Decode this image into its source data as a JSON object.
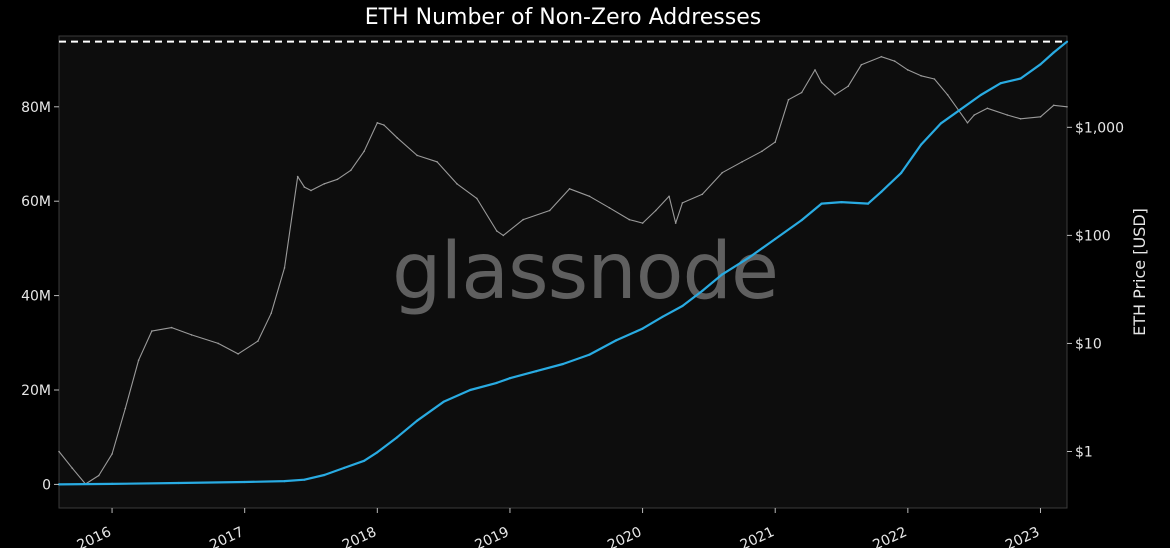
{
  "chart_data": {
    "type": "line",
    "title": "ETH Number of Non-Zero Addresses",
    "watermark": "glassnode",
    "xlabel": "",
    "ylabel_left": "",
    "ylabel_right": "ETH Price [USD]",
    "x_ticks": [
      "2016",
      "2017",
      "2018",
      "2019",
      "2020",
      "2021",
      "2022",
      "2023"
    ],
    "y_left_ticks": [
      {
        "value": 0,
        "label": "0"
      },
      {
        "value": 20,
        "label": "20M"
      },
      {
        "value": 40,
        "label": "40M"
      },
      {
        "value": 60,
        "label": "60M"
      },
      {
        "value": 80,
        "label": "80M"
      }
    ],
    "y_right_ticks": [
      {
        "value": 1,
        "label": "$1"
      },
      {
        "value": 10,
        "label": "$10"
      },
      {
        "value": 100,
        "label": "$100"
      },
      {
        "value": 1000,
        "label": "$1,000"
      }
    ],
    "x_range": [
      2015.6,
      2023.2
    ],
    "y_left_range_millions": [
      -5,
      95
    ],
    "y_right_scale": "log",
    "y_right_range_usd": [
      0.3,
      7000
    ],
    "ath_line_millions": 93.8,
    "colors": {
      "background": "#000000",
      "plot_background": "#0d0d0d",
      "addresses_line": "#29abe2",
      "price_line": "#9a9a9a",
      "ath_line": "#ffffff"
    },
    "grid": false,
    "legend": "none",
    "series": [
      {
        "axis": "left",
        "unit": "M",
        "color": "#29abe2",
        "x": [
          2015.6,
          2016.0,
          2016.5,
          2017.0,
          2017.3,
          2017.45,
          2017.6,
          2017.75,
          2017.9,
          2018.0,
          2018.15,
          2018.3,
          2018.5,
          2018.7,
          2018.9,
          2019.0,
          2019.2,
          2019.4,
          2019.6,
          2019.8,
          2020.0,
          2020.15,
          2020.3,
          2020.45,
          2020.6,
          2020.8,
          2021.0,
          2021.2,
          2021.35,
          2021.5,
          2021.7,
          2021.8,
          2021.95,
          2022.1,
          2022.25,
          2022.4,
          2022.55,
          2022.7,
          2022.85,
          2023.0,
          2023.1,
          2023.2
        ],
        "values": [
          0.0,
          0.1,
          0.3,
          0.5,
          0.7,
          1.0,
          2.0,
          3.5,
          5.0,
          6.8,
          10.0,
          13.5,
          17.5,
          20.0,
          21.5,
          22.5,
          24.0,
          25.5,
          27.5,
          30.5,
          33.0,
          35.5,
          37.8,
          41.0,
          44.5,
          48.0,
          52.0,
          56.0,
          59.5,
          59.8,
          59.5,
          62.0,
          66.0,
          72.0,
          76.5,
          79.5,
          82.5,
          85.0,
          86.0,
          89.0,
          91.5,
          93.8
        ]
      },
      {
        "axis": "right",
        "unit": "USD",
        "color": "#9a9a9a",
        "x": [
          2015.6,
          2015.7,
          2015.8,
          2015.9,
          2016.0,
          2016.1,
          2016.2,
          2016.3,
          2016.45,
          2016.6,
          2016.8,
          2016.95,
          2017.1,
          2017.2,
          2017.3,
          2017.4,
          2017.45,
          2017.5,
          2017.6,
          2017.7,
          2017.8,
          2017.9,
          2018.0,
          2018.05,
          2018.15,
          2018.3,
          2018.45,
          2018.6,
          2018.75,
          2018.9,
          2018.95,
          2019.1,
          2019.3,
          2019.45,
          2019.6,
          2019.75,
          2019.9,
          2020.0,
          2020.1,
          2020.2,
          2020.25,
          2020.3,
          2020.45,
          2020.6,
          2020.75,
          2020.9,
          2021.0,
          2021.1,
          2021.2,
          2021.3,
          2021.35,
          2021.45,
          2021.55,
          2021.65,
          2021.8,
          2021.9,
          2022.0,
          2022.1,
          2022.2,
          2022.3,
          2022.45,
          2022.5,
          2022.6,
          2022.75,
          2022.85,
          2023.0,
          2023.1,
          2023.2
        ],
        "values": [
          1.0,
          0.7,
          0.5,
          0.6,
          0.95,
          2.5,
          7.0,
          13.0,
          14.0,
          12.0,
          10.0,
          8.0,
          10.5,
          19.0,
          50.0,
          350.0,
          280.0,
          260.0,
          300.0,
          330.0,
          400.0,
          600.0,
          1100.0,
          1050.0,
          800.0,
          550.0,
          480.0,
          300.0,
          220.0,
          110.0,
          100.0,
          140.0,
          170.0,
          270.0,
          230.0,
          180.0,
          140.0,
          130.0,
          170.0,
          230.0,
          130.0,
          200.0,
          240.0,
          380.0,
          480.0,
          600.0,
          730.0,
          1800.0,
          2100.0,
          3400.0,
          2600.0,
          2000.0,
          2400.0,
          3800.0,
          4500.0,
          4100.0,
          3400.0,
          3000.0,
          2800.0,
          2000.0,
          1100.0,
          1300.0,
          1500.0,
          1300.0,
          1200.0,
          1250.0,
          1600.0,
          1550.0
        ]
      }
    ]
  }
}
